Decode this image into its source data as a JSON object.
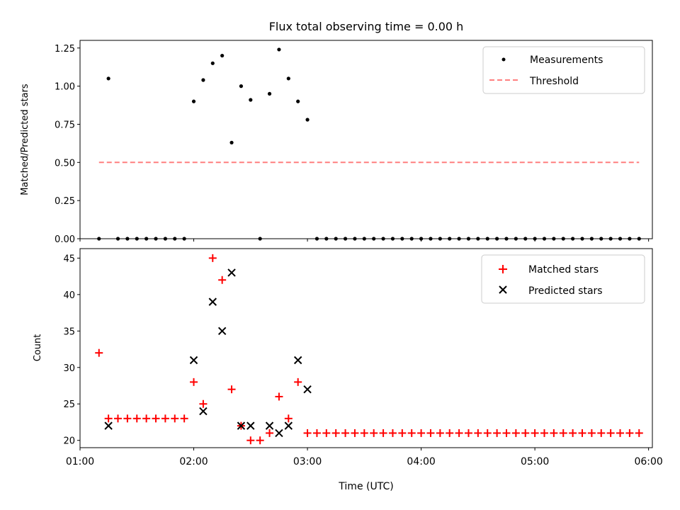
{
  "chart_data": [
    {
      "type": "scatter",
      "title": "Flux total observing time = 0.00 h",
      "xlabel": "",
      "ylabel": "Matched/Predicted stars",
      "ylim": [
        0,
        1.3
      ],
      "yticks": [
        "0.00",
        "0.25",
        "0.50",
        "0.75",
        "1.00",
        "1.25"
      ],
      "x_range": [
        "01:00",
        "06:02"
      ],
      "legend_position": "top-right",
      "series": [
        {
          "name": "Measurements",
          "marker": "dot",
          "color": "#000000",
          "points": [
            {
              "x": "01:10",
              "y": 0
            },
            {
              "x": "01:15",
              "y": 1.05
            },
            {
              "x": "01:20",
              "y": 0
            },
            {
              "x": "01:25",
              "y": 0
            },
            {
              "x": "01:30",
              "y": 0
            },
            {
              "x": "01:35",
              "y": 0
            },
            {
              "x": "01:40",
              "y": 0
            },
            {
              "x": "01:45",
              "y": 0
            },
            {
              "x": "01:50",
              "y": 0
            },
            {
              "x": "01:55",
              "y": 0
            },
            {
              "x": "02:00",
              "y": 0.9
            },
            {
              "x": "02:05",
              "y": 1.04
            },
            {
              "x": "02:10",
              "y": 1.15
            },
            {
              "x": "02:15",
              "y": 1.2
            },
            {
              "x": "02:20",
              "y": 0.63
            },
            {
              "x": "02:25",
              "y": 1.0
            },
            {
              "x": "02:30",
              "y": 0.91
            },
            {
              "x": "02:35",
              "y": 0
            },
            {
              "x": "02:40",
              "y": 0.95
            },
            {
              "x": "02:45",
              "y": 1.24
            },
            {
              "x": "02:50",
              "y": 1.05
            },
            {
              "x": "02:55",
              "y": 0.9
            },
            {
              "x": "03:00",
              "y": 0.78
            },
            {
              "x": "03:05",
              "y": 0
            },
            {
              "x": "03:10",
              "y": 0
            },
            {
              "x": "03:15",
              "y": 0
            },
            {
              "x": "03:20",
              "y": 0
            },
            {
              "x": "03:25",
              "y": 0
            },
            {
              "x": "03:30",
              "y": 0
            },
            {
              "x": "03:35",
              "y": 0
            },
            {
              "x": "03:40",
              "y": 0
            },
            {
              "x": "03:45",
              "y": 0
            },
            {
              "x": "03:50",
              "y": 0
            },
            {
              "x": "03:55",
              "y": 0
            },
            {
              "x": "04:00",
              "y": 0
            },
            {
              "x": "04:05",
              "y": 0
            },
            {
              "x": "04:10",
              "y": 0
            },
            {
              "x": "04:15",
              "y": 0
            },
            {
              "x": "04:20",
              "y": 0
            },
            {
              "x": "04:25",
              "y": 0
            },
            {
              "x": "04:30",
              "y": 0
            },
            {
              "x": "04:35",
              "y": 0
            },
            {
              "x": "04:40",
              "y": 0
            },
            {
              "x": "04:45",
              "y": 0
            },
            {
              "x": "04:50",
              "y": 0
            },
            {
              "x": "04:55",
              "y": 0
            },
            {
              "x": "05:00",
              "y": 0
            },
            {
              "x": "05:05",
              "y": 0
            },
            {
              "x": "05:10",
              "y": 0
            },
            {
              "x": "05:15",
              "y": 0
            },
            {
              "x": "05:20",
              "y": 0
            },
            {
              "x": "05:25",
              "y": 0
            },
            {
              "x": "05:30",
              "y": 0
            },
            {
              "x": "05:35",
              "y": 0
            },
            {
              "x": "05:40",
              "y": 0
            },
            {
              "x": "05:45",
              "y": 0
            },
            {
              "x": "05:50",
              "y": 0
            },
            {
              "x": "05:55",
              "y": 0
            }
          ]
        },
        {
          "name": "Threshold",
          "marker": "dashed-line",
          "color": "#ff7f7f",
          "points": [
            {
              "x": "01:10",
              "y": 0.5
            },
            {
              "x": "05:55",
              "y": 0.5
            }
          ]
        }
      ]
    },
    {
      "type": "scatter",
      "title": "",
      "xlabel": "Time (UTC)",
      "ylabel": "Count",
      "ylim": [
        19,
        46.3
      ],
      "yticks": [
        "20",
        "25",
        "30",
        "35",
        "40",
        "45"
      ],
      "xticks": [
        "01:00",
        "02:00",
        "03:00",
        "04:00",
        "05:00",
        "06:00"
      ],
      "x_range": [
        "01:00",
        "06:02"
      ],
      "legend_position": "top-right",
      "series": [
        {
          "name": "Matched stars",
          "marker": "plus",
          "color": "#ff0000",
          "points": [
            {
              "x": "01:10",
              "y": 32
            },
            {
              "x": "01:15",
              "y": 23
            },
            {
              "x": "01:20",
              "y": 23
            },
            {
              "x": "01:25",
              "y": 23
            },
            {
              "x": "01:30",
              "y": 23
            },
            {
              "x": "01:35",
              "y": 23
            },
            {
              "x": "01:40",
              "y": 23
            },
            {
              "x": "01:45",
              "y": 23
            },
            {
              "x": "01:50",
              "y": 23
            },
            {
              "x": "01:55",
              "y": 23
            },
            {
              "x": "02:00",
              "y": 28
            },
            {
              "x": "02:05",
              "y": 25
            },
            {
              "x": "02:10",
              "y": 45
            },
            {
              "x": "02:15",
              "y": 42
            },
            {
              "x": "02:20",
              "y": 27
            },
            {
              "x": "02:25",
              "y": 22
            },
            {
              "x": "02:30",
              "y": 20
            },
            {
              "x": "02:35",
              "y": 20
            },
            {
              "x": "02:40",
              "y": 21
            },
            {
              "x": "02:45",
              "y": 26
            },
            {
              "x": "02:50",
              "y": 23
            },
            {
              "x": "02:55",
              "y": 28
            },
            {
              "x": "03:00",
              "y": 21
            },
            {
              "x": "03:05",
              "y": 21
            },
            {
              "x": "03:10",
              "y": 21
            },
            {
              "x": "03:15",
              "y": 21
            },
            {
              "x": "03:20",
              "y": 21
            },
            {
              "x": "03:25",
              "y": 21
            },
            {
              "x": "03:30",
              "y": 21
            },
            {
              "x": "03:35",
              "y": 21
            },
            {
              "x": "03:40",
              "y": 21
            },
            {
              "x": "03:45",
              "y": 21
            },
            {
              "x": "03:50",
              "y": 21
            },
            {
              "x": "03:55",
              "y": 21
            },
            {
              "x": "04:00",
              "y": 21
            },
            {
              "x": "04:05",
              "y": 21
            },
            {
              "x": "04:10",
              "y": 21
            },
            {
              "x": "04:15",
              "y": 21
            },
            {
              "x": "04:20",
              "y": 21
            },
            {
              "x": "04:25",
              "y": 21
            },
            {
              "x": "04:30",
              "y": 21
            },
            {
              "x": "04:35",
              "y": 21
            },
            {
              "x": "04:40",
              "y": 21
            },
            {
              "x": "04:45",
              "y": 21
            },
            {
              "x": "04:50",
              "y": 21
            },
            {
              "x": "04:55",
              "y": 21
            },
            {
              "x": "05:00",
              "y": 21
            },
            {
              "x": "05:05",
              "y": 21
            },
            {
              "x": "05:10",
              "y": 21
            },
            {
              "x": "05:15",
              "y": 21
            },
            {
              "x": "05:20",
              "y": 21
            },
            {
              "x": "05:25",
              "y": 21
            },
            {
              "x": "05:30",
              "y": 21
            },
            {
              "x": "05:35",
              "y": 21
            },
            {
              "x": "05:40",
              "y": 21
            },
            {
              "x": "05:45",
              "y": 21
            },
            {
              "x": "05:50",
              "y": 21
            },
            {
              "x": "05:55",
              "y": 21
            }
          ]
        },
        {
          "name": "Predicted stars",
          "marker": "x",
          "color": "#000000",
          "points": [
            {
              "x": "01:15",
              "y": 22
            },
            {
              "x": "02:00",
              "y": 31
            },
            {
              "x": "02:05",
              "y": 24
            },
            {
              "x": "02:10",
              "y": 39
            },
            {
              "x": "02:15",
              "y": 35
            },
            {
              "x": "02:20",
              "y": 43
            },
            {
              "x": "02:25",
              "y": 22
            },
            {
              "x": "02:30",
              "y": 22
            },
            {
              "x": "02:40",
              "y": 22
            },
            {
              "x": "02:45",
              "y": 21
            },
            {
              "x": "02:50",
              "y": 22
            },
            {
              "x": "02:55",
              "y": 31
            },
            {
              "x": "03:00",
              "y": 27
            }
          ]
        }
      ]
    }
  ]
}
